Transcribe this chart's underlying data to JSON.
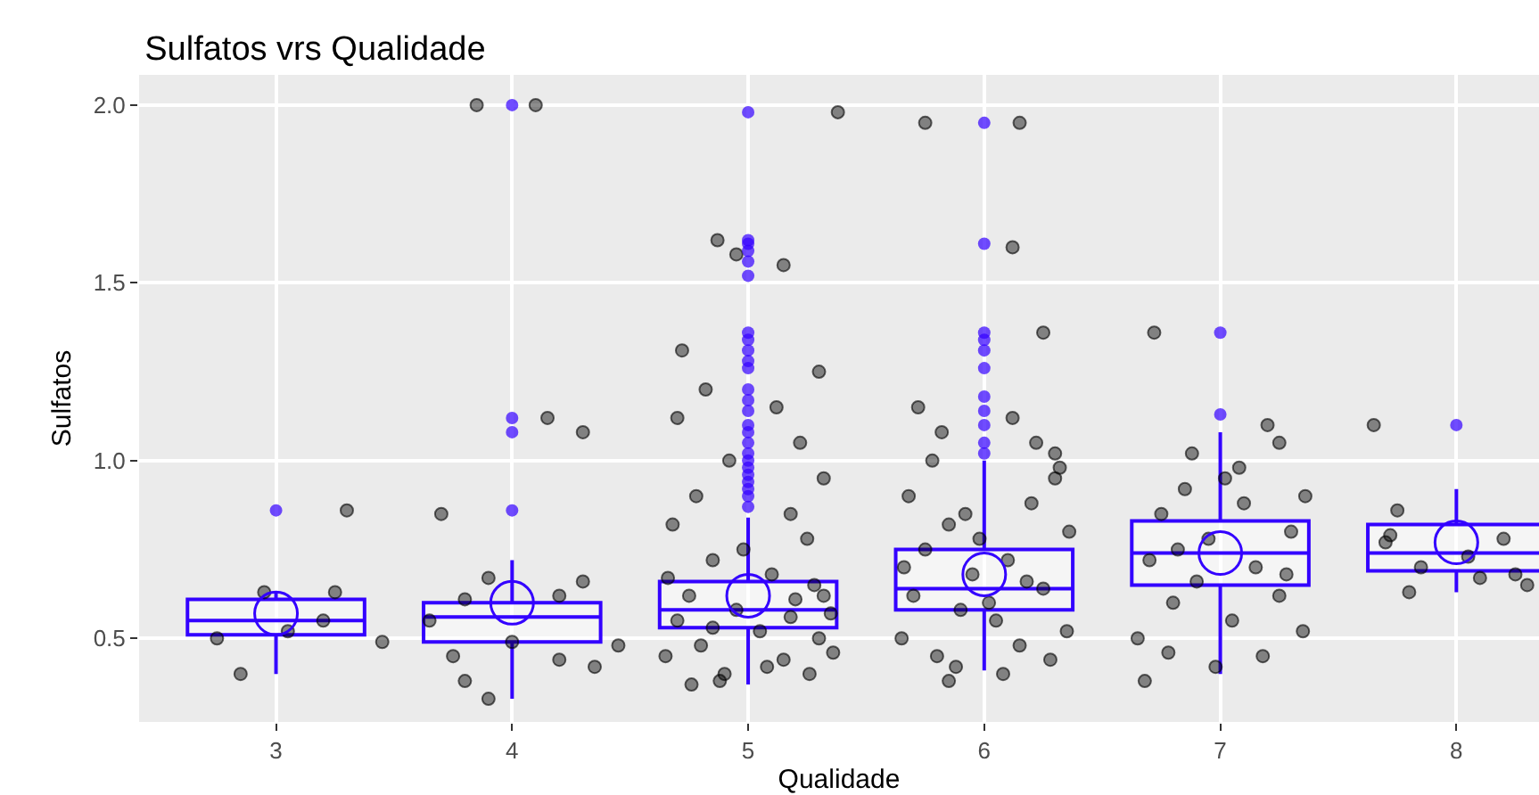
{
  "chart_data": {
    "type": "box",
    "title": "Sulfatos vrs Qualidade",
    "xlabel": "Qualidade",
    "ylabel": "Sulfatos",
    "xlim": [
      2.42,
      8.35
    ],
    "xticks": [
      3,
      4,
      5,
      6,
      7,
      8
    ],
    "ylim": [
      0.265,
      2.085
    ],
    "yticks": [
      0.5,
      {
        "value": 1,
        "label": "1.0"
      },
      1.5,
      {
        "value": 2,
        "label": "2.0"
      }
    ],
    "grid": true,
    "marker": "circle",
    "series": [
      {
        "type": "scatter",
        "color": "#000000",
        "x": [
          2.75,
          2.95,
          3.25,
          3.3,
          2.85,
          3.2,
          3.45,
          3.05,
          3.65,
          3.8,
          3.9,
          4.2,
          4.45,
          4.15,
          4.3,
          4.1,
          3.85,
          3.7,
          3.8,
          3.9,
          4.3,
          4.2,
          4.35,
          4.0,
          3.75,
          4.65,
          4.7,
          4.75,
          4.8,
          4.85,
          4.9,
          4.95,
          5.05,
          5.1,
          5.15,
          5.2,
          5.25,
          5.3,
          5.35,
          4.68,
          4.78,
          4.88,
          4.98,
          5.08,
          5.18,
          5.28,
          5.36,
          4.72,
          4.82,
          4.92,
          5.12,
          5.22,
          5.32,
          4.76,
          5.26,
          4.66,
          5.32,
          4.87,
          4.95,
          5.15,
          5.38,
          4.7,
          5.3,
          4.85,
          5.18,
          5.65,
          5.7,
          5.75,
          5.8,
          5.85,
          5.9,
          5.95,
          6.05,
          6.1,
          6.15,
          6.2,
          6.25,
          6.3,
          6.35,
          5.68,
          5.78,
          5.88,
          5.98,
          6.08,
          6.18,
          6.28,
          6.36,
          5.72,
          5.82,
          6.12,
          6.22,
          6.32,
          5.66,
          6.02,
          5.92,
          5.75,
          6.15,
          6.12,
          6.25,
          6.3,
          5.85,
          6.65,
          6.7,
          6.75,
          6.8,
          6.85,
          6.9,
          6.95,
          7.05,
          7.1,
          7.15,
          7.2,
          7.25,
          7.3,
          7.35,
          6.68,
          6.78,
          6.88,
          6.98,
          7.08,
          7.18,
          7.28,
          7.36,
          6.72,
          7.25,
          6.82,
          7.02,
          7.65,
          7.75,
          7.72,
          7.8,
          7.85,
          7.7,
          8.05,
          8.1,
          8.2,
          8.25,
          8.3
        ],
        "values": [
          0.5,
          0.63,
          0.63,
          0.86,
          0.4,
          0.55,
          0.49,
          0.52,
          0.55,
          0.61,
          0.67,
          0.62,
          0.48,
          1.12,
          1.08,
          2.0,
          2.0,
          0.85,
          0.38,
          0.33,
          0.66,
          0.44,
          0.42,
          0.49,
          0.45,
          0.45,
          0.55,
          0.62,
          0.48,
          0.72,
          0.4,
          0.58,
          0.52,
          0.68,
          0.44,
          0.61,
          0.78,
          0.5,
          0.57,
          0.82,
          0.9,
          0.38,
          0.75,
          0.42,
          0.85,
          0.65,
          0.46,
          1.31,
          1.2,
          1.0,
          1.15,
          1.05,
          0.95,
          0.37,
          0.4,
          0.67,
          0.62,
          1.62,
          1.58,
          1.55,
          1.98,
          1.12,
          1.25,
          0.53,
          0.56,
          0.5,
          0.62,
          0.75,
          0.45,
          0.82,
          0.58,
          0.68,
          0.55,
          0.72,
          0.48,
          0.88,
          0.64,
          0.95,
          0.52,
          0.9,
          1.0,
          0.42,
          0.78,
          0.4,
          0.66,
          0.44,
          0.8,
          1.15,
          1.08,
          1.12,
          1.05,
          0.98,
          0.7,
          0.6,
          0.85,
          1.95,
          1.95,
          1.6,
          1.36,
          1.02,
          0.38,
          0.5,
          0.72,
          0.85,
          0.6,
          0.92,
          0.66,
          0.78,
          0.55,
          0.88,
          0.7,
          1.1,
          0.62,
          0.8,
          0.52,
          0.38,
          0.46,
          1.02,
          0.42,
          0.98,
          0.45,
          0.68,
          0.9,
          1.36,
          1.05,
          0.75,
          0.95,
          1.1,
          0.86,
          0.79,
          0.63,
          0.7,
          0.77,
          0.73,
          0.67,
          0.78,
          0.68,
          0.65
        ]
      },
      {
        "color": "#3300ff",
        "x": [
          3,
          4,
          5,
          6,
          7,
          8
        ],
        "boxes": [
          {
            "low": 0.4,
            "q1": 0.51,
            "median": 0.55,
            "q3": 0.61,
            "high": 0.63,
            "mean": 0.57,
            "outliers": [
              0.86
            ]
          },
          {
            "low": 0.33,
            "q1": 0.49,
            "median": 0.56,
            "q3": 0.6,
            "high": 0.72,
            "mean": 0.6,
            "outliers": [
              0.86,
              1.08,
              1.12,
              2.0
            ]
          },
          {
            "low": 0.37,
            "q1": 0.53,
            "median": 0.58,
            "q3": 0.66,
            "high": 0.84,
            "mean": 0.62,
            "outliers": [
              0.87,
              0.9,
              0.92,
              0.94,
              0.96,
              0.98,
              1.0,
              1.02,
              1.05,
              1.08,
              1.1,
              1.14,
              1.17,
              1.2,
              1.26,
              1.28,
              1.31,
              1.34,
              1.36,
              1.52,
              1.56,
              1.59,
              1.61,
              1.62,
              1.98
            ]
          },
          {
            "low": 0.41,
            "q1": 0.58,
            "median": 0.64,
            "q3": 0.75,
            "high": 1.0,
            "mean": 0.68,
            "outliers": [
              1.02,
              1.05,
              1.1,
              1.14,
              1.18,
              1.26,
              1.31,
              1.34,
              1.36,
              1.61,
              1.95
            ]
          },
          {
            "low": 0.4,
            "q1": 0.65,
            "median": 0.74,
            "q3": 0.83,
            "high": 1.08,
            "mean": 0.74,
            "outliers": [
              1.13,
              1.36
            ]
          },
          {
            "low": 0.63,
            "q1": 0.69,
            "median": 0.74,
            "q3": 0.82,
            "high": 0.92,
            "mean": 0.77,
            "outliers": [
              1.1
            ]
          }
        ]
      }
    ]
  }
}
